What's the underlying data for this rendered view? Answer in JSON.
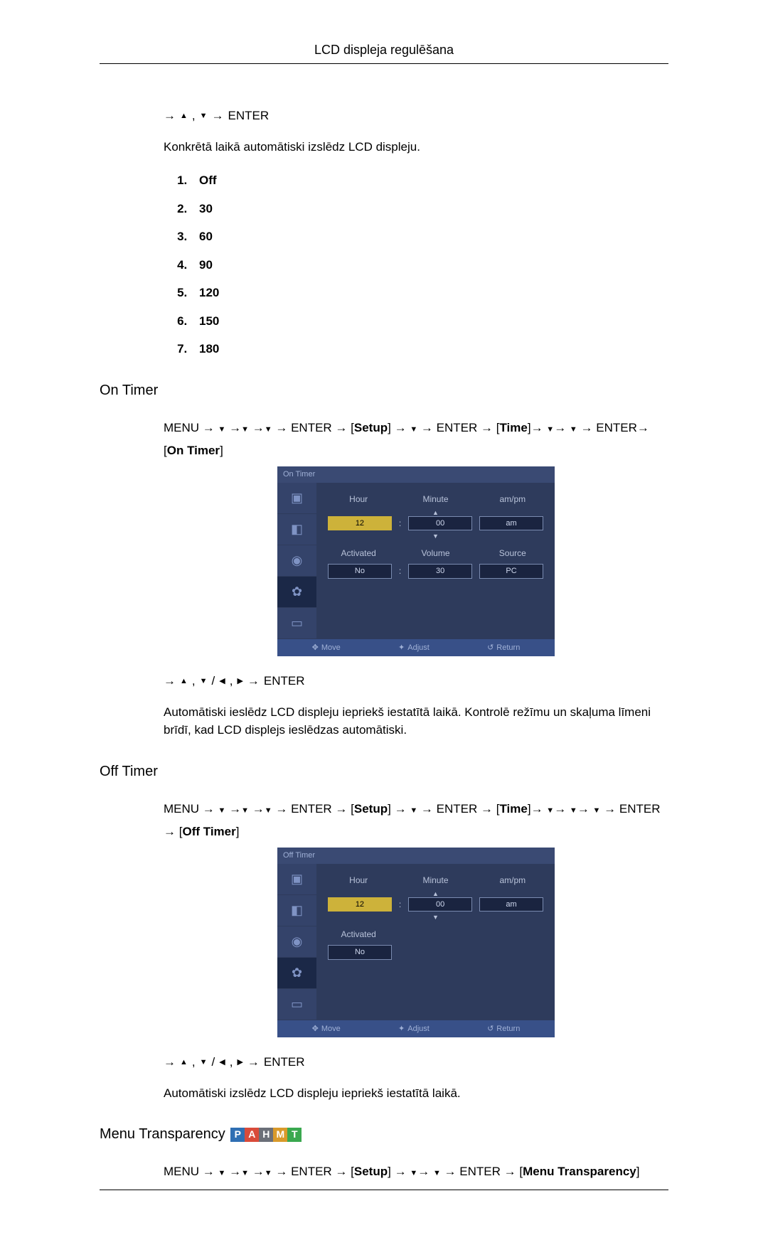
{
  "header": {
    "title": "LCD displeja regulēšana"
  },
  "intro_nav": {
    "prefix_arrow": "→",
    "enter": "ENTER"
  },
  "intro_desc": "Konkrētā laikā automātiski izslēdz LCD displeju.",
  "options": [
    "Off",
    "30",
    "60",
    "90",
    "120",
    "150",
    "180"
  ],
  "on_timer": {
    "title": "On Timer",
    "path_plain": "MENU → ▼ →▼ →▼ → ENTER → [Setup] → ▼ → ENTER → [Time]→ ▼→ ▼ → ENTER→ [On Timer]",
    "nav_after": "→ ▲ , ▼ / ◀, ▶ → ENTER",
    "desc": "Automātiski ieslēdz LCD displeju iepriekš iestatītā laikā. Kontrolē režīmu un skaļuma līmeni brīdī, kad LCD displejs ieslēdzas automātiski.",
    "osd": {
      "title": "On Timer",
      "row1_labels": [
        "Hour",
        "Minute",
        "am/pm"
      ],
      "row1_values": [
        "12",
        "00",
        "am"
      ],
      "row2_labels": [
        "Activated",
        "Volume",
        "Source"
      ],
      "row2_values": [
        "No",
        "30",
        "PC"
      ],
      "footer": [
        "Move",
        "Adjust",
        "Return"
      ]
    }
  },
  "off_timer": {
    "title": "Off Timer",
    "path_plain": "MENU → ▼ →▼ →▼ → ENTER → [Setup] → ▼ → ENTER → [Time]→ ▼→ ▼→ ▼ → ENTER → [Off Timer]",
    "nav_after": "→ ▲ , ▼ / ◀, ▶ → ENTER",
    "desc": "Automātiski izslēdz LCD displeju iepriekš iestatītā laikā.",
    "osd": {
      "title": "Off Timer",
      "row1_labels": [
        "Hour",
        "Minute",
        "am/pm"
      ],
      "row1_values": [
        "12",
        "00",
        "am"
      ],
      "row2_labels": [
        "Activated"
      ],
      "row2_values": [
        "No"
      ],
      "footer": [
        "Move",
        "Adjust",
        "Return"
      ]
    }
  },
  "menu_transparency": {
    "title": "Menu Transparency",
    "badges": [
      {
        "label": "P",
        "bg": "#2f6fb3"
      },
      {
        "label": "A",
        "bg": "#d94b3a"
      },
      {
        "label": "H",
        "bg": "#6b6f78"
      },
      {
        "label": "M",
        "bg": "#d99a2b"
      },
      {
        "label": "T",
        "bg": "#3aa84f"
      }
    ],
    "path_plain": "MENU → ▼ →▼ →▼ → ENTER → [Setup] → ▼→ ▼ → ENTER → [Menu Transparency]"
  },
  "osd_style": {
    "bg": "#2e3b5c",
    "titlebar_bg": "#3a4a73",
    "sidebar_icon_bg": "#34436a",
    "sidebar_selected_bg": "#1b2847",
    "footer_bg": "#385088",
    "highlight_bg": "#cdb23a",
    "value_bg": "#1a2440"
  }
}
